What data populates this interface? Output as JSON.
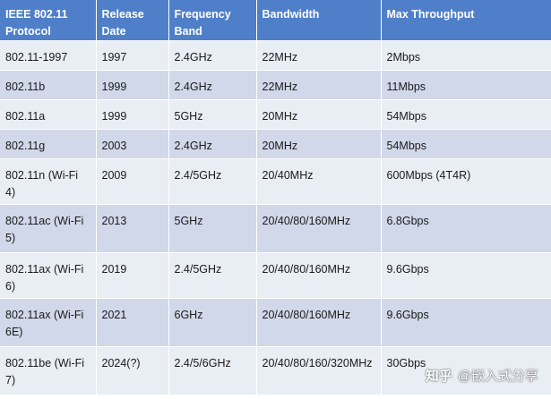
{
  "table": {
    "headers": [
      "IEEE 802.11 Protocol",
      "Release Date",
      "Frequency Band",
      "Bandwidth",
      "Max Throughput"
    ],
    "rows": [
      [
        "802.11-1997",
        "1997",
        "2.4GHz",
        "22MHz",
        "2Mbps"
      ],
      [
        "802.11b",
        "1999",
        "2.4GHz",
        "22MHz",
        "11Mbps"
      ],
      [
        "802.11a",
        "1999",
        "5GHz",
        "20MHz",
        "54Mbps"
      ],
      [
        "802.11g",
        "2003",
        "2.4GHz",
        "20MHz",
        "54Mbps"
      ],
      [
        "802.11n (Wi-Fi 4)",
        "2009",
        "2.4/5GHz",
        "20/40MHz",
        "600Mbps (4T4R)"
      ],
      [
        "802.11ac (Wi-Fi 5)",
        "2013",
        "5GHz",
        "20/40/80/160MHz",
        "6.8Gbps"
      ],
      [
        "802.11ax (Wi-Fi 6)",
        "2019",
        "2.4/5GHz",
        "20/40/80/160MHz",
        "9.6Gbps"
      ],
      [
        "802.11ax (Wi-Fi 6E)",
        "2021",
        "6GHz",
        "20/40/80/160MHz",
        "9.6Gbps"
      ],
      [
        "802.11be (Wi-Fi 7)",
        "2024(?)",
        "2.4/5/6GHz",
        "20/40/80/160/320MHz",
        "30Gbps"
      ]
    ]
  },
  "colors": {
    "header_bg": "#4f7fc9",
    "row_light": "#e9edf4",
    "row_dark": "#d0d8e9"
  },
  "watermark": {
    "logo": "知乎",
    "text": "@嵌入式分享"
  }
}
